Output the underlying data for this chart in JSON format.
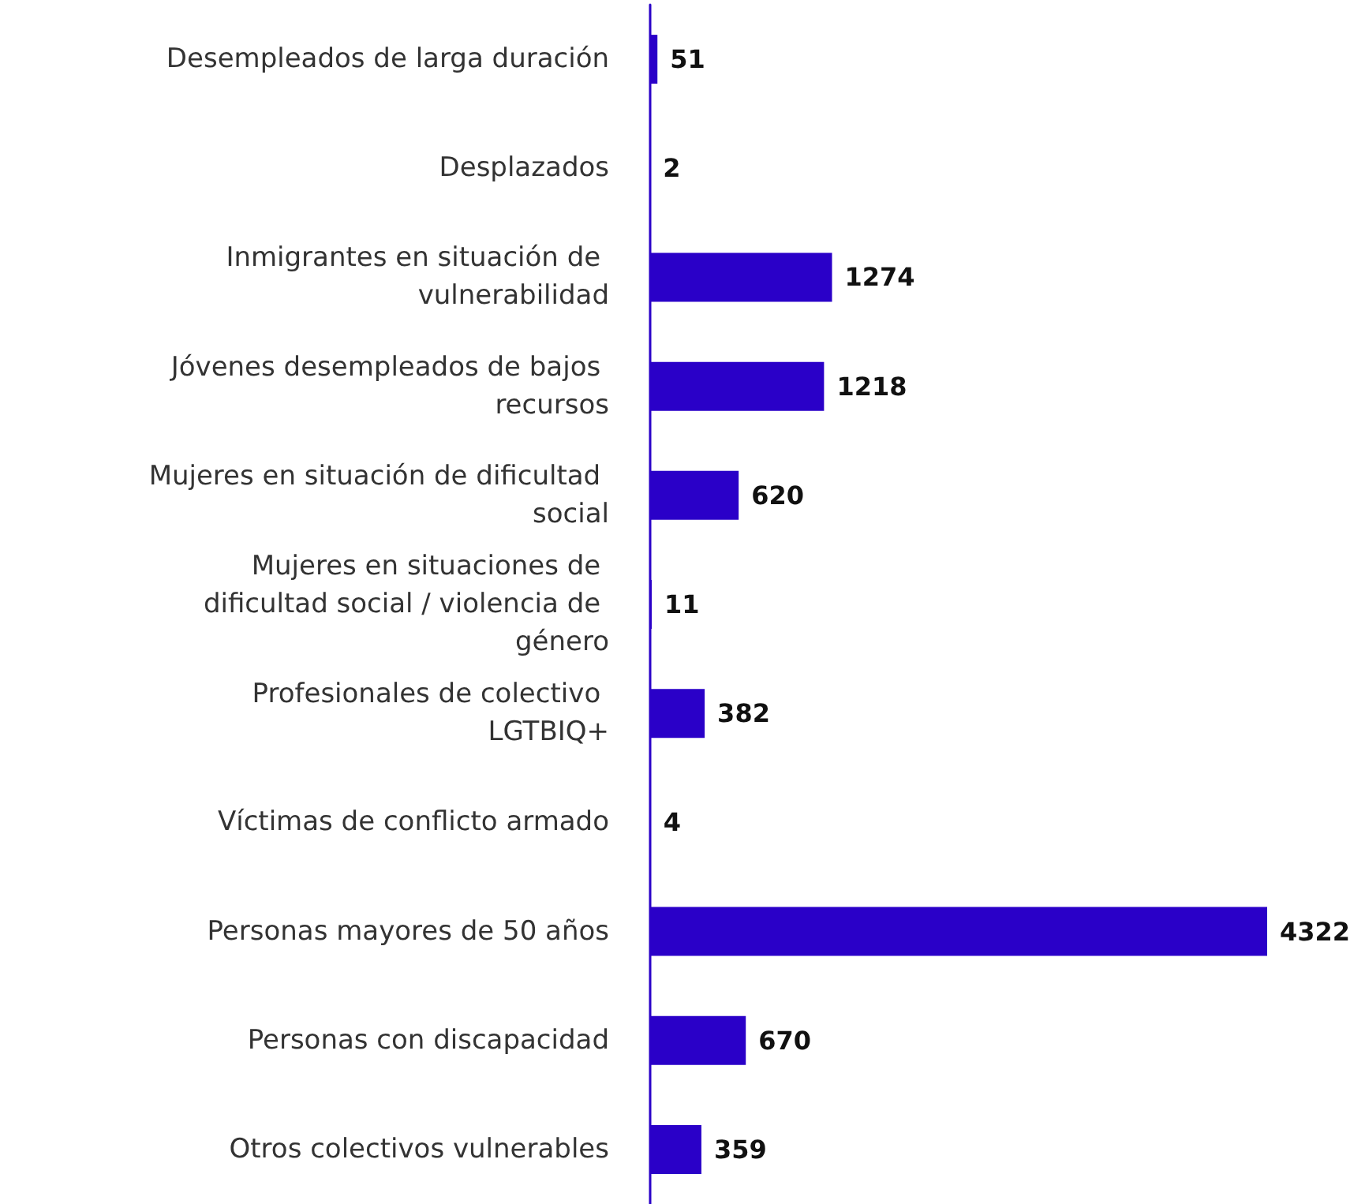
{
  "chart_data": {
    "type": "bar",
    "orientation": "horizontal",
    "categories": [
      "Desempleados de larga duración",
      "Desplazados",
      "Inmigrantes en situación de vulnerabilidad",
      "Jóvenes desempleados de bajos recursos",
      "Mujeres en situación de dificultad social",
      "Mujeres en situaciones de dificultad social / violencia de género",
      "Profesionales de colectivo LGTBIQ+",
      "Víctimas de conflicto armado",
      "Personas mayores de 50 años",
      "Personas con discapacidad",
      "Otros colectivos vulnerables"
    ],
    "values": [
      51,
      2,
      1274,
      1218,
      620,
      11,
      382,
      4,
      4322,
      670,
      359
    ],
    "color": "#2a00c8",
    "data_labels": true
  }
}
